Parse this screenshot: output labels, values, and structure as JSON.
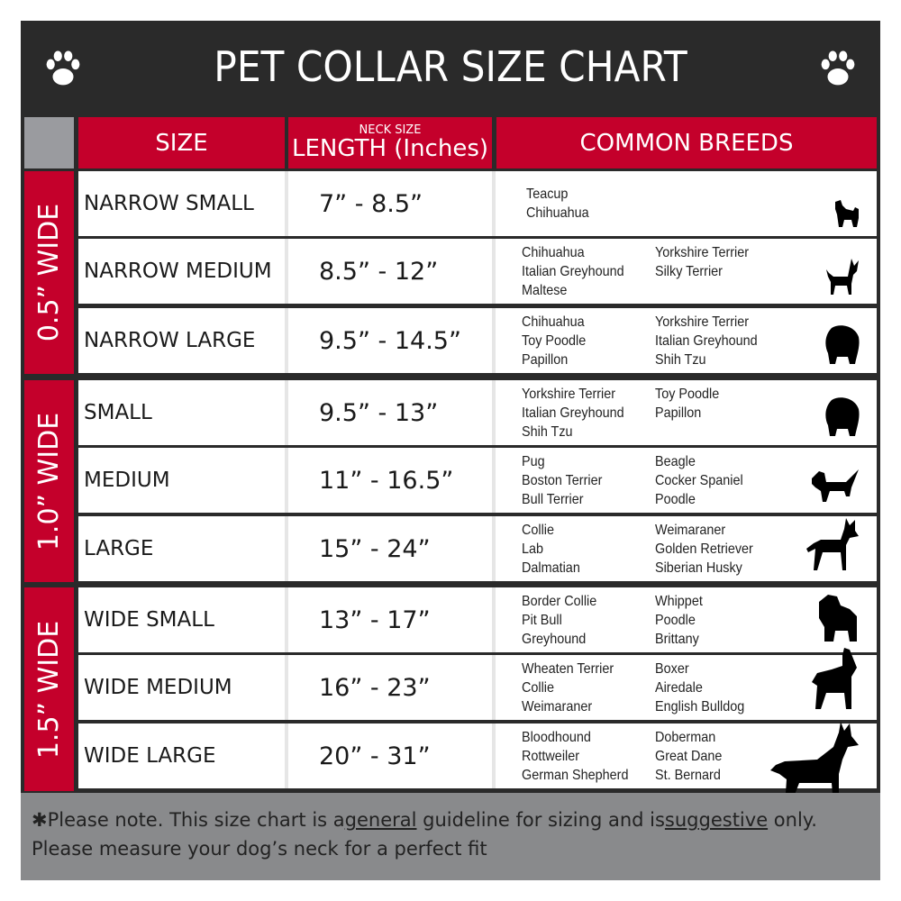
{
  "title": "PET COLLAR SIZE CHART",
  "header": {
    "size": "SIZE",
    "length_small": "NECK SIZE",
    "length_big": "LENGTH (Inches)",
    "breeds": "COMMON BREEDS"
  },
  "colors": {
    "dark": "#2a2a2a",
    "red": "#c4002b",
    "gray": "#9a9b9f",
    "footer": "#898a8c"
  },
  "groups": [
    {
      "label": "0.5” WIDE",
      "rows": [
        {
          "size": "NARROW SMALL",
          "length": "7” - 8.5”",
          "breeds_left": [
            "Teacup",
            "Chihuahua"
          ],
          "breeds_right": [],
          "icon": "yorkie-silhouette-icon"
        },
        {
          "size": "NARROW MEDIUM",
          "length": "8.5” - 12”",
          "breeds_left": [
            "Chihuahua",
            "Italian Greyhound",
            "Maltese"
          ],
          "breeds_right": [
            "Yorkshire Terrier",
            "Silky Terrier"
          ],
          "icon": "chihuahua-silhouette-icon"
        },
        {
          "size": "NARROW LARGE",
          "length": "9.5” - 14.5”",
          "breeds_left": [
            "Chihuahua",
            "Toy Poodle",
            "Papillon"
          ],
          "breeds_right": [
            "Yorkshire Terrier",
            "Italian Greyhound",
            "Shih Tzu"
          ],
          "icon": "pomeranian-silhouette-icon"
        }
      ]
    },
    {
      "label": "1.0” WIDE",
      "rows": [
        {
          "size": "SMALL",
          "length": "9.5” - 13”",
          "breeds_left": [
            "Yorkshire Terrier",
            "Italian Greyhound",
            "Shih Tzu"
          ],
          "breeds_right": [
            "Toy Poodle",
            "Papillon"
          ],
          "icon": "pomeranian-silhouette-icon"
        },
        {
          "size": "MEDIUM",
          "length": "11” - 16.5”",
          "breeds_left": [
            "Pug",
            "Boston Terrier",
            "Bull Terrier"
          ],
          "breeds_right": [
            "Beagle",
            "Cocker Spaniel",
            "Poodle"
          ],
          "icon": "dachshund-silhouette-icon"
        },
        {
          "size": "LARGE",
          "length": "15” - 24”",
          "breeds_left": [
            "Collie",
            "Lab",
            "Dalmatian"
          ],
          "breeds_right": [
            "Weimaraner",
            "Golden Retriever",
            "Siberian Husky"
          ],
          "icon": "shepherd-silhouette-icon"
        }
      ]
    },
    {
      "label": "1.5” WIDE",
      "rows": [
        {
          "size": "WIDE SMALL",
          "length": "13” - 17”",
          "breeds_left": [
            "Border Collie",
            "Pit Bull",
            "Greyhound"
          ],
          "breeds_right": [
            "Whippet",
            "Poodle",
            "Brittany"
          ],
          "icon": "bulldog-silhouette-icon"
        },
        {
          "size": "WIDE MEDIUM",
          "length": "16” - 23”",
          "breeds_left": [
            "Wheaten Terrier",
            "Collie",
            "Weimaraner"
          ],
          "breeds_right": [
            "Boxer",
            "Airedale",
            "English Bulldog"
          ],
          "icon": "pitbull-silhouette-icon"
        },
        {
          "size": "WIDE LARGE",
          "length": "20” - 31”",
          "breeds_left": [
            "Bloodhound",
            "Rottweiler",
            "German Shepherd"
          ],
          "breeds_right": [
            "Doberman",
            "Great Dane",
            "St. Bernard"
          ],
          "icon": "doberman-silhouette-icon"
        }
      ]
    }
  ],
  "footer": {
    "p1": "✱Please note. This size chart is a",
    "u1": "general",
    "p2": " guideline for sizing and is",
    "u2": "suggestive",
    "p3": " only.",
    "line2": "Please measure your dog’s neck for a perfect fit"
  }
}
